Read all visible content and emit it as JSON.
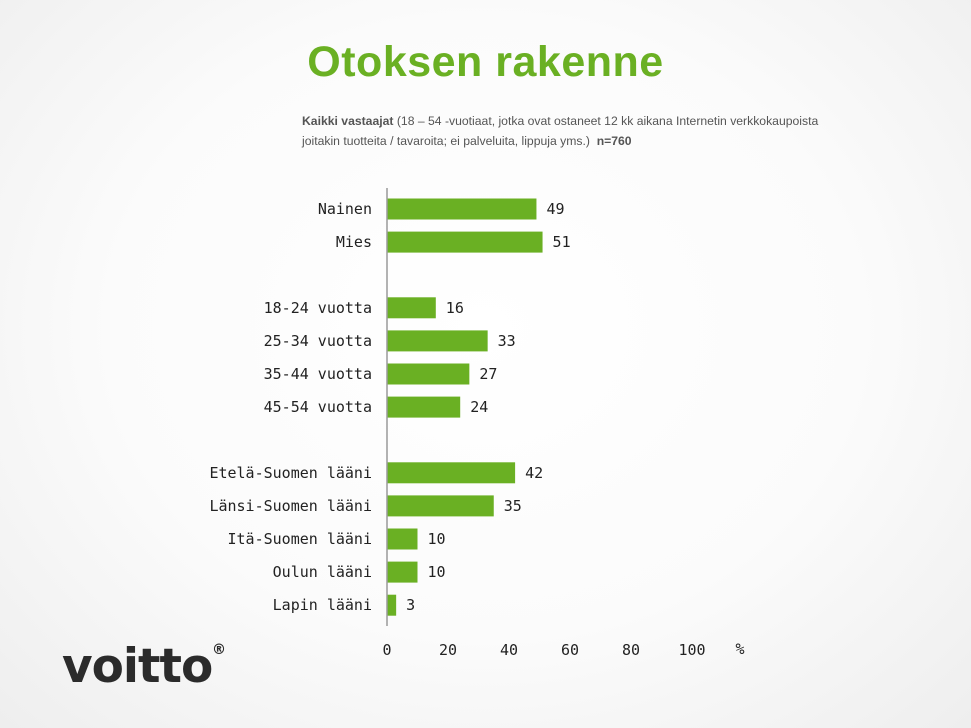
{
  "title": "Otoksen rakenne",
  "subtitle": {
    "bold_lead": "Kaikki vastaajat",
    "text": " (18 – 54 -vuotiaat, jotka ovat ostaneet 12 kk aikana Internetin verkkokaupoista joitakin tuotteita / tavaroita; ei palveluita, lippuja yms.)",
    "n": "n=760"
  },
  "logo": {
    "text": "voitto",
    "mark": "®"
  },
  "chart_data": {
    "type": "bar",
    "orientation": "horizontal",
    "categories": [
      "Nainen",
      "Mies",
      "18-24 vuotta",
      "25-34 vuotta",
      "35-44 vuotta",
      "45-54 vuotta",
      "Etelä-Suomen lääni",
      "Länsi-Suomen lääni",
      "Itä-Suomen lääni",
      "Oulun lääni",
      "Lapin lääni"
    ],
    "groups": [
      2,
      4,
      5
    ],
    "values": [
      49,
      51,
      16,
      33,
      27,
      24,
      42,
      35,
      10,
      10,
      3
    ],
    "xlim": [
      0,
      100
    ],
    "xticks": [
      0,
      20,
      40,
      60,
      80,
      100
    ],
    "xunit": "%",
    "bar_color": "#6ab023",
    "grid": false,
    "data_labels": true
  }
}
